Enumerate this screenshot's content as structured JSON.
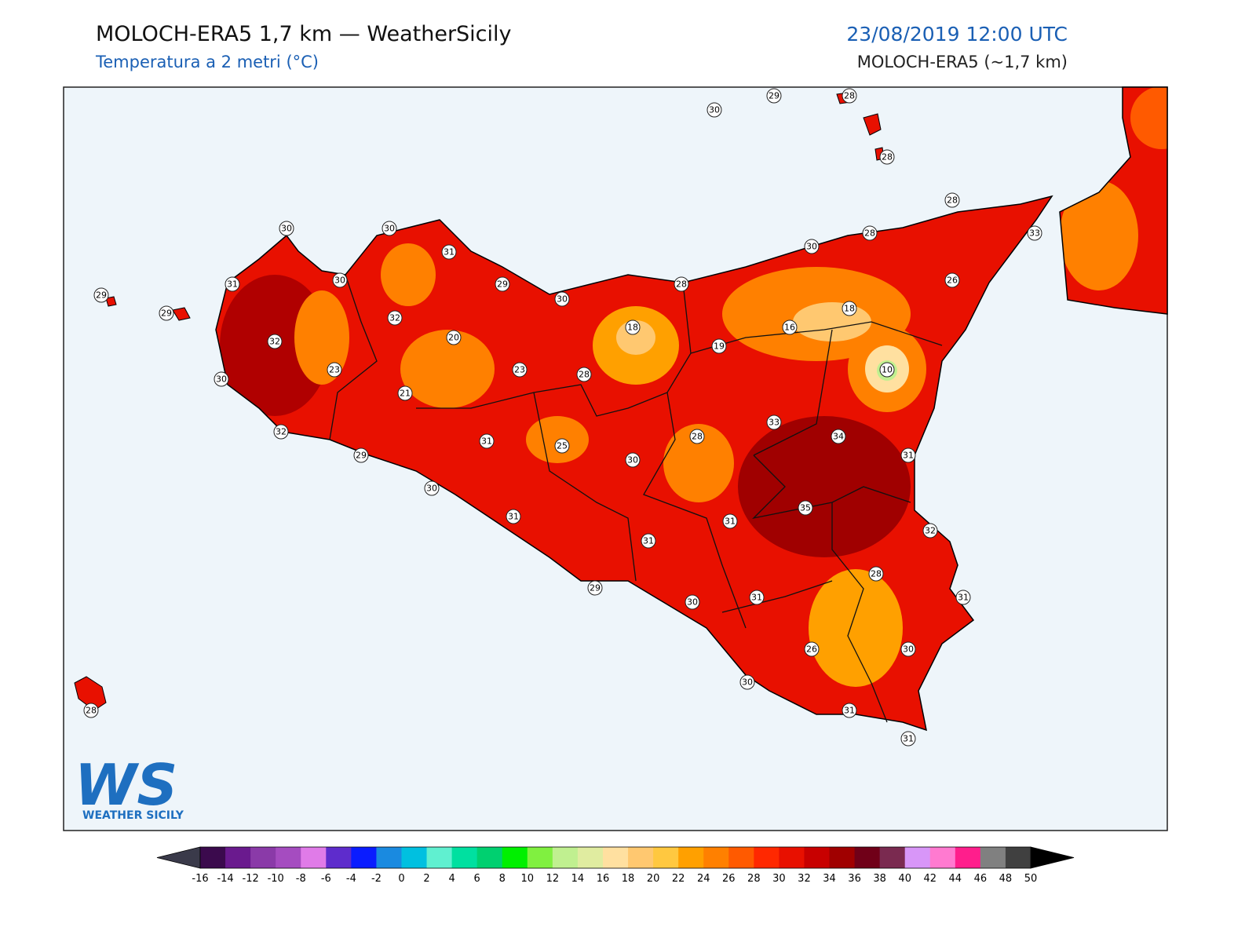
{
  "header": {
    "title": "MOLOCH-ERA5 1,7 km — WeatherSicily",
    "subtitle": "Temperatura a 2 metri (°C)",
    "datetime": "23/08/2019 12:00 UTC",
    "model": "MOLOCH-ERA5 (~1,7 km)"
  },
  "logo": {
    "mark": "WS",
    "text": "WEATHER SICILY"
  },
  "stations": [
    30,
    29,
    28,
    28,
    28,
    33,
    28,
    30,
    26,
    28,
    18,
    16,
    19,
    10,
    18,
    30,
    29,
    31,
    30,
    30,
    30,
    31,
    29,
    29,
    32,
    20,
    32,
    23,
    30,
    21,
    23,
    28,
    33,
    34,
    28,
    31,
    25,
    30,
    32,
    29,
    31,
    30,
    35,
    31,
    31,
    31,
    32,
    28,
    31,
    30,
    29,
    31,
    26,
    30,
    30,
    28,
    31,
    31
  ],
  "colorbar": {
    "ticks": [
      -16,
      -14,
      -12,
      -10,
      -8,
      -6,
      -4,
      -2,
      0,
      2,
      4,
      6,
      8,
      10,
      12,
      14,
      16,
      18,
      20,
      22,
      24,
      26,
      28,
      30,
      32,
      34,
      36,
      38,
      40,
      42,
      44,
      46,
      48,
      50
    ],
    "colors": [
      "#3b0a4d",
      "#6a1a8e",
      "#8a3aa8",
      "#a54cc0",
      "#e07be8",
      "#5e2ccc",
      "#0a1cff",
      "#1a8ae0",
      "#00c0e0",
      "#60f0d0",
      "#00e0a0",
      "#00d070",
      "#00f000",
      "#80f040",
      "#c0f090",
      "#e0eca0",
      "#ffe0a0",
      "#ffc870",
      "#ffc840",
      "#ffa000",
      "#ff8000",
      "#ff5a00",
      "#ff2800",
      "#e81000",
      "#c80000",
      "#a00000",
      "#700018",
      "#7a2a50",
      "#d896f8",
      "#ff7ad0",
      "#ff1e8c",
      "#808080",
      "#404040"
    ],
    "under": "#3a3a4a",
    "over": "#000000"
  }
}
